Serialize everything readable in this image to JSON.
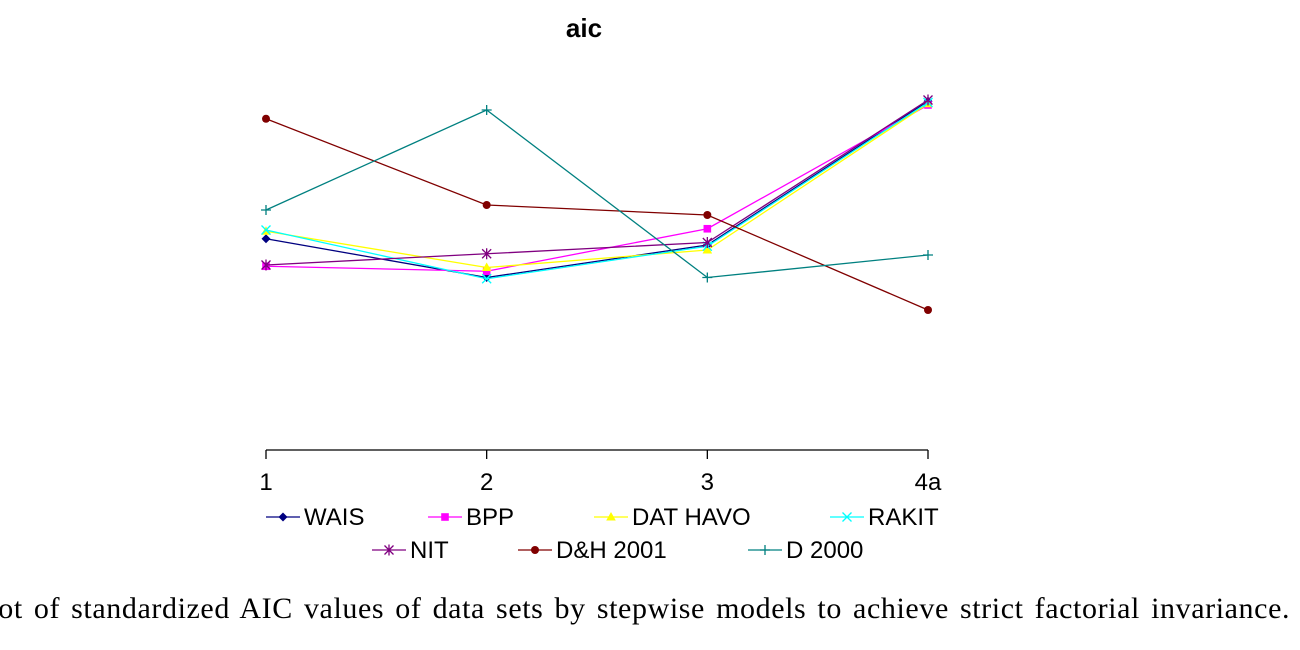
{
  "chart_data": {
    "type": "line",
    "title": "aic",
    "xlabel": "",
    "ylabel": "",
    "categories": [
      "1",
      "2",
      "3",
      "4a"
    ],
    "ylim": [
      -1.5,
      1.5
    ],
    "grid": false,
    "y_axis_shown": false,
    "legend_position": "bottom",
    "series": [
      {
        "name": "WAIS",
        "values": [
          0.19,
          -0.12,
          0.14,
          1.29
        ],
        "color": "#000080",
        "marker": "diamond"
      },
      {
        "name": "BPP",
        "values": [
          -0.03,
          -0.07,
          0.27,
          1.26
        ],
        "color": "#FF00FF",
        "marker": "square"
      },
      {
        "name": "DAT HAVO",
        "values": [
          0.25,
          -0.04,
          0.1,
          1.27
        ],
        "color": "#FFFF00",
        "marker": "triangle"
      },
      {
        "name": "RAKIT",
        "values": [
          0.26,
          -0.13,
          0.13,
          1.28
        ],
        "color": "#00FFFF",
        "marker": "x"
      },
      {
        "name": "NIT",
        "values": [
          -0.02,
          0.07,
          0.16,
          1.3
        ],
        "color": "#800080",
        "marker": "star"
      },
      {
        "name": "D&H 2001",
        "values": [
          1.15,
          0.46,
          0.38,
          -0.38
        ],
        "color": "#800000",
        "marker": "circle"
      },
      {
        "name": "D 2000",
        "values": [
          0.42,
          1.22,
          -0.12,
          0.06
        ],
        "color": "#008080",
        "marker": "plus"
      }
    ]
  },
  "caption": "Plot of standardized AIC values of data sets by stepwise models to achieve strict factorial invariance."
}
